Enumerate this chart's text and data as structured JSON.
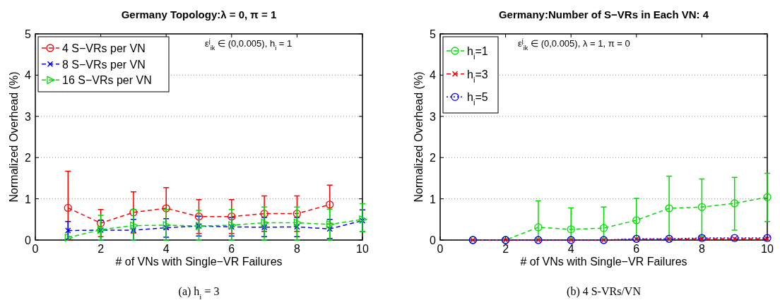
{
  "chart_data": [
    {
      "type": "line",
      "title": "Germany Topology:λ = 0, π = 1",
      "xlabel": "# of VNs with Single−VR Failures",
      "ylabel": "Normalized Overhead (%)",
      "xlim": [
        0,
        10
      ],
      "xticks": [
        0,
        2,
        4,
        6,
        8,
        10
      ],
      "ylim": [
        0,
        5
      ],
      "yticks": [
        0,
        1,
        2,
        3,
        4,
        5
      ],
      "grid": "y",
      "legend": "top left",
      "line_style": "dashed",
      "annotations": [
        "ε$^{j}$$_{ik}$ ∈ (0,0.005), h$_{i}$ = 1",
        "(a) h$_{i}$ = 3"
      ],
      "series": [
        {
          "name": "4 S−VRs per VN",
          "color": "#ff0000",
          "marker": "circle",
          "x": [
            1,
            2,
            3,
            4,
            5,
            6,
            7,
            8,
            9
          ],
          "values": [
            0.78,
            0.41,
            0.67,
            0.77,
            0.57,
            0.57,
            0.64,
            0.64,
            0.86
          ],
          "errors": [
            [
              0,
              1.67
            ],
            [
              0.08,
              0.74
            ],
            [
              0.17,
              1.17
            ],
            [
              0.27,
              1.27
            ],
            [
              0.16,
              0.98
            ],
            [
              0.16,
              0.98
            ],
            [
              0.21,
              1.07
            ],
            [
              0.21,
              1.07
            ],
            [
              0.39,
              1.33
            ]
          ]
        },
        {
          "name": "8 S−VRs per VN",
          "color": "#0000ff",
          "marker": "cross",
          "x": [
            1,
            2,
            3,
            4,
            5,
            6,
            7,
            8,
            9,
            10
          ],
          "values": [
            0.23,
            0.24,
            0.24,
            0.3,
            0.34,
            0.32,
            0.31,
            0.32,
            0.27,
            0.47
          ],
          "errors": [
            [
              0.02,
              0.45
            ],
            [
              0,
              0.48
            ],
            [
              0,
              0.5
            ],
            [
              0.07,
              0.52
            ],
            [
              0.1,
              0.58
            ],
            [
              0.1,
              0.55
            ],
            [
              0.08,
              0.55
            ],
            [
              0.08,
              0.55
            ],
            [
              0.04,
              0.5
            ],
            [
              0.2,
              0.73
            ]
          ]
        },
        {
          "name": "16 S−VRs per VN",
          "color": "#00dd00",
          "marker": "triangle",
          "x": [
            1,
            2,
            3,
            4,
            5,
            6,
            7,
            8,
            9,
            10
          ],
          "values": [
            0.06,
            0.25,
            0.35,
            0.36,
            0.34,
            0.36,
            0.42,
            0.42,
            0.38,
            0.5
          ],
          "errors": [
            null,
            [
              0,
              0.6
            ],
            [
              0,
              0.74
            ],
            [
              0,
              0.74
            ],
            [
              0,
              0.72
            ],
            [
              0,
              0.74
            ],
            [
              0,
              0.8
            ],
            [
              0,
              0.8
            ],
            [
              0,
              0.75
            ],
            [
              0.2,
              0.88
            ]
          ]
        }
      ]
    },
    {
      "type": "line",
      "title": "Germany:Number of S−VRs in Each VN: 4",
      "xlabel": "# of VNs with Single−VR Failures",
      "ylabel": "Normalized Overhead (%)",
      "xlim": [
        0,
        10
      ],
      "xticks": [
        0,
        2,
        4,
        6,
        8,
        10
      ],
      "ylim": [
        0,
        5
      ],
      "yticks": [
        0,
        1,
        2,
        3,
        4,
        5
      ],
      "grid": "y",
      "legend": "top left",
      "annotations": [
        "ε$^{j}$$_{ik}$ ∈ (0,0.005), λ = 1, π = 0",
        "(b) 4 S-VRs/VN"
      ],
      "series": [
        {
          "name": "h$_{i}$=1",
          "color": "#00dd00",
          "marker": "circle",
          "line_style": "dashed",
          "x": [
            1,
            2,
            3,
            4,
            5,
            6,
            7,
            8,
            9,
            10
          ],
          "values": [
            0,
            0,
            0.31,
            0.26,
            0.29,
            0.48,
            0.77,
            0.8,
            0.89,
            1.04
          ],
          "errors": [
            null,
            null,
            [
              0,
              0.95
            ],
            [
              0,
              0.78
            ],
            [
              0,
              0.8
            ],
            [
              0,
              1.01
            ],
            [
              0,
              1.55
            ],
            [
              0.1,
              1.48
            ],
            [
              0.24,
              1.52
            ],
            [
              0.45,
              1.62
            ]
          ]
        },
        {
          "name": "h$_{i}$=3",
          "color": "#ff0000",
          "marker": "cross",
          "line_style": "dashed",
          "x": [
            1,
            2,
            3,
            4,
            5,
            6,
            7,
            8,
            9,
            10
          ],
          "values": [
            0,
            0,
            0,
            0,
            0,
            0.02,
            0.02,
            0.03,
            0.03,
            0.03
          ]
        },
        {
          "name": "h$_{i}$=5",
          "color": "#0000ff",
          "marker": "circle",
          "line_style": "dotted",
          "x": [
            1,
            2,
            3,
            4,
            5,
            6,
            7,
            8,
            9,
            10
          ],
          "values": [
            0,
            0,
            0,
            0,
            0,
            0.03,
            0.03,
            0.05,
            0.05,
            0.05
          ]
        }
      ]
    }
  ]
}
